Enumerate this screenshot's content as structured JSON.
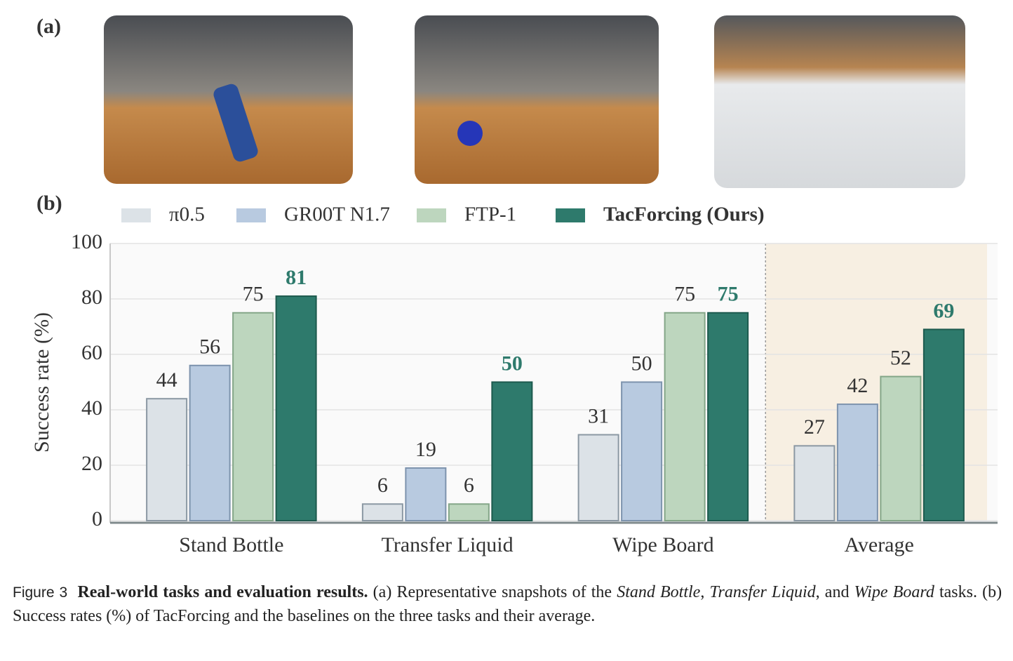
{
  "panel_labels": [
    "(a)",
    "(b)"
  ],
  "chart_data": {
    "type": "bar",
    "y_label": "Success rate (%)",
    "categories": [
      "Stand Bottle",
      "Transfer Liquid",
      "Wipe Board",
      "Average"
    ],
    "series": [
      {
        "name": "π0.5",
        "color": "#dce2e7",
        "edge": "#8b98a3",
        "values": [
          44,
          6,
          31,
          27
        ]
      },
      {
        "name": "GR00T N1.7",
        "color": "#b8cae0",
        "edge": "#7d93ad",
        "values": [
          56,
          19,
          50,
          42
        ]
      },
      {
        "name": "FTP-1",
        "color": "#bdd6be",
        "edge": "#84a688",
        "values": [
          75,
          6,
          75,
          52
        ]
      },
      {
        "name": "TacForcing (Ours)",
        "color": "#2e7a6c",
        "edge": "#1d5a4e",
        "values": [
          81,
          50,
          75,
          69
        ]
      }
    ],
    "ylim": [
      0,
      100
    ],
    "yticks": [
      0,
      20,
      40,
      60,
      80,
      100
    ],
    "grid": true
  },
  "caption": {
    "label": "Figure 3",
    "title": "Real-world tasks and evaluation results.",
    "body": [
      " (a) Representative snapshots of the ",
      "Stand Bottle",
      ", ",
      "Transfer Liquid",
      ", and ",
      "Wipe Board",
      " tasks. (b) Success rates (%) of TacForcing and the baselines on the three tasks and their average."
    ]
  }
}
